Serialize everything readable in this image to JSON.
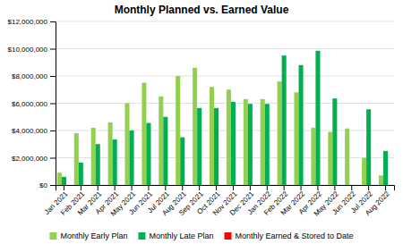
{
  "chart_data": {
    "type": "bar",
    "title": "Monthly Planned vs. Earned Value",
    "categories": [
      "Jan 2021",
      "Feb 2021",
      "Mar 2021",
      "Apr 2021",
      "May 2021",
      "Jun 2021",
      "Jul 2021",
      "Aug 2021",
      "Sep 2021",
      "Oct 2021",
      "Nov 2021",
      "Dec 2021",
      "Jan 2022",
      "Feb 2022",
      "Mar 2022",
      "Apr 2022",
      "May 2022",
      "Jun 2022",
      "Jul 2022",
      "Aug 2022"
    ],
    "series": [
      {
        "name": "Monthly Early Plan",
        "color": "#92d050",
        "values": [
          900000,
          3800000,
          4200000,
          4600000,
          6000000,
          7500000,
          6500000,
          8000000,
          8600000,
          7200000,
          7000000,
          6300000,
          6300000,
          7600000,
          6800000,
          4200000,
          3900000,
          4150000,
          2000000,
          700000
        ]
      },
      {
        "name": "Monthly Late Plan",
        "color": "#00b050",
        "values": [
          600000,
          1650000,
          3000000,
          3350000,
          4000000,
          4550000,
          5000000,
          3500000,
          5650000,
          5650000,
          6100000,
          5950000,
          5950000,
          9500000,
          8800000,
          9850000,
          6350000,
          0,
          5550000,
          2500000
        ]
      },
      {
        "name": "Monthly Earned & Stored to Date",
        "color": "#ff0000",
        "values": [
          0,
          null,
          null,
          null,
          null,
          null,
          null,
          null,
          null,
          null,
          null,
          null,
          null,
          null,
          null,
          null,
          null,
          null,
          null,
          null
        ]
      }
    ],
    "ylim": [
      0,
      12000000
    ],
    "yticks": [
      {
        "value": 0,
        "label": "$0"
      },
      {
        "value": 2000000,
        "label": "$2,000,000"
      },
      {
        "value": 4000000,
        "label": "$4,000,000"
      },
      {
        "value": 6000000,
        "label": "$6,000,000"
      },
      {
        "value": 8000000,
        "label": "$8,000,000"
      },
      {
        "value": 10000000,
        "label": "$10,000,000"
      },
      {
        "value": 12000000,
        "label": "$12,000,000"
      }
    ],
    "grid": true,
    "legend": "bottom"
  }
}
